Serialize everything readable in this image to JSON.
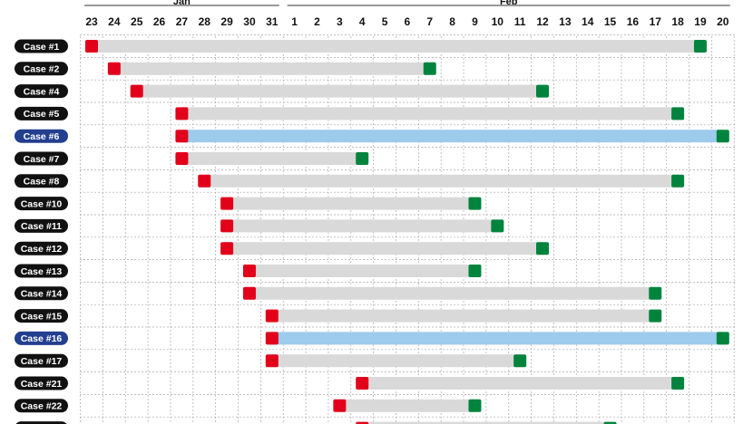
{
  "chart_data": {
    "type": "gantt",
    "months": [
      {
        "label": "Jan",
        "first_day": 23,
        "last_day": 31
      },
      {
        "label": "Feb",
        "first_day": 1,
        "last_day": 20
      }
    ],
    "days": [
      "23",
      "24",
      "25",
      "26",
      "27",
      "28",
      "29",
      "30",
      "31",
      "1",
      "2",
      "3",
      "4",
      "5",
      "6",
      "7",
      "8",
      "9",
      "10",
      "11",
      "12",
      "13",
      "14",
      "15",
      "16",
      "17",
      "18",
      "19",
      "20"
    ],
    "cases": [
      {
        "label": "Case #1",
        "start": "Jan 23",
        "end": "Feb 19",
        "highlight": false
      },
      {
        "label": "Case #2",
        "start": "Jan 24",
        "end": "Feb 7",
        "highlight": false
      },
      {
        "label": "Case #4",
        "start": "Jan 25",
        "end": "Feb 12",
        "highlight": false
      },
      {
        "label": "Case #5",
        "start": "Jan 27",
        "end": "Feb 18",
        "highlight": false
      },
      {
        "label": "Case #6",
        "start": "Jan 27",
        "end": "Feb 20",
        "highlight": true
      },
      {
        "label": "Case #7",
        "start": "Jan 27",
        "end": "Feb 4",
        "highlight": false
      },
      {
        "label": "Case #8",
        "start": "Jan 28",
        "end": "Feb 18",
        "highlight": false
      },
      {
        "label": "Case #10",
        "start": "Jan 29",
        "end": "Feb 9",
        "highlight": false
      },
      {
        "label": "Case #11",
        "start": "Jan 29",
        "end": "Feb 10",
        "highlight": false
      },
      {
        "label": "Case #12",
        "start": "Jan 29",
        "end": "Feb 12",
        "highlight": false
      },
      {
        "label": "Case #13",
        "start": "Jan 30",
        "end": "Feb 9",
        "highlight": false
      },
      {
        "label": "Case #14",
        "start": "Jan 30",
        "end": "Feb 17",
        "highlight": false
      },
      {
        "label": "Case #15",
        "start": "Jan 31",
        "end": "Feb 17",
        "highlight": false
      },
      {
        "label": "Case #16",
        "start": "Jan 31",
        "end": "Feb 20",
        "highlight": true
      },
      {
        "label": "Case #17",
        "start": "Jan 31",
        "end": "Feb 11",
        "highlight": false
      },
      {
        "label": "Case #21",
        "start": "Feb 4",
        "end": "Feb 18",
        "highlight": false
      },
      {
        "label": "Case #22",
        "start": "Feb 3",
        "end": "Feb 9",
        "highlight": false
      },
      {
        "label": "",
        "start": "Feb 4",
        "end": "Feb 15",
        "highlight": false
      }
    ],
    "colors": {
      "start_marker": "#e2001a",
      "end_marker": "#00843d",
      "bar": "#d9d9d9",
      "bar_highlight": "#9ccbec",
      "label_bg": "#111111",
      "label_bg_highlight": "#233f8f",
      "grid": "#aaaaaa"
    }
  }
}
